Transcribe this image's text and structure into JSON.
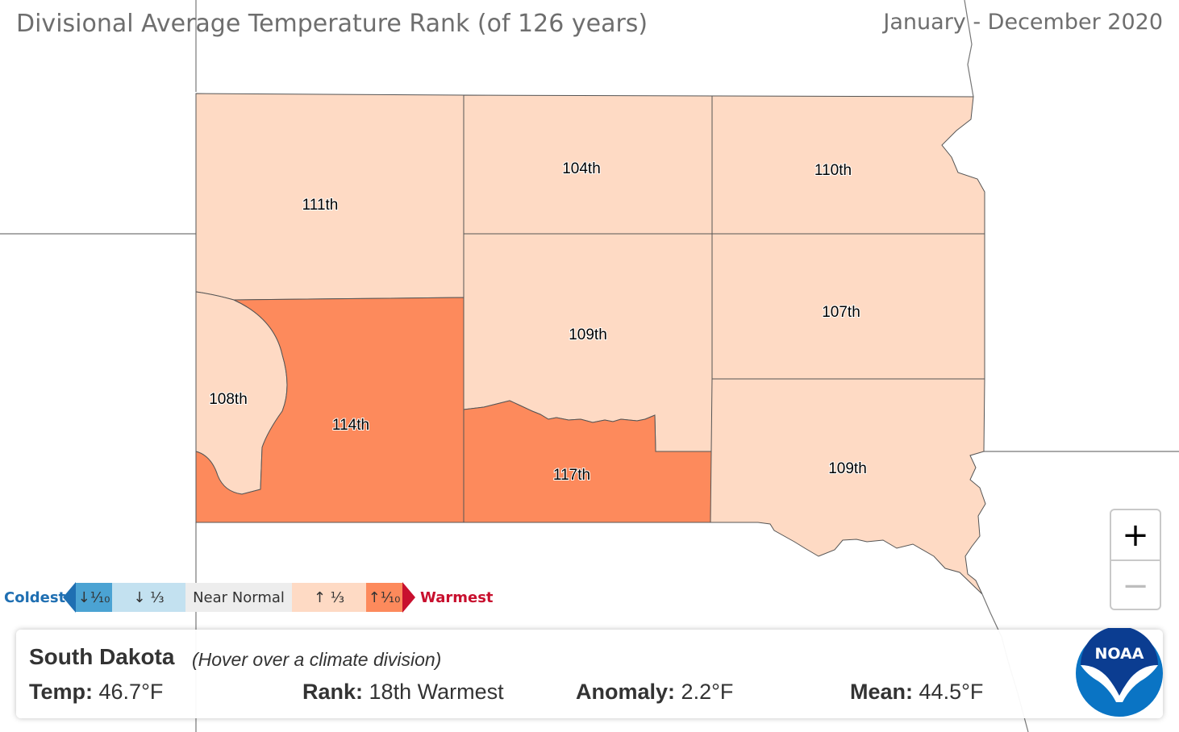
{
  "header": {
    "title": "Divisional Average Temperature Rank (of 126 years)",
    "period": "January - December 2020"
  },
  "map": {
    "state": "South Dakota",
    "divisions": [
      {
        "id": "northwest",
        "rank": "111th",
        "color": "#fedac4"
      },
      {
        "id": "north-central",
        "rank": "104th",
        "color": "#fedac4"
      },
      {
        "id": "northeast",
        "rank": "110th",
        "color": "#fedac4"
      },
      {
        "id": "black-hills",
        "rank": "108th",
        "color": "#fedac4"
      },
      {
        "id": "southwest",
        "rank": "114th",
        "color": "#fd8a5c"
      },
      {
        "id": "central",
        "rank": "109th",
        "color": "#fedac4"
      },
      {
        "id": "south-central",
        "rank": "117th",
        "color": "#fd8a5c"
      },
      {
        "id": "east-central",
        "rank": "107th",
        "color": "#fedac4"
      },
      {
        "id": "southeast",
        "rank": "109th",
        "color": "#fedac4"
      }
    ]
  },
  "legend": {
    "coldest_label": "Coldest",
    "warmest_label": "Warmest",
    "boxes": [
      {
        "label": "↓⅒",
        "color": "#4ba3d3"
      },
      {
        "label": "↓ ⅓",
        "color": "#c3e1f0"
      },
      {
        "label": "Near Normal",
        "color": "#ededed"
      },
      {
        "label": "↑ ⅓",
        "color": "#fedac4"
      },
      {
        "label": "↑⅒",
        "color": "#fd8a5c"
      }
    ],
    "coldest_color": "#1f6fb2",
    "warmest_color": "#c8102e"
  },
  "zoom": {
    "in_label": "+",
    "out_label": "−"
  },
  "info": {
    "state": "South Dakota",
    "hint": "(Hover over a climate division)",
    "temp_label": "Temp:",
    "temp_value": "46.7°F",
    "rank_label": "Rank:",
    "rank_value": "18th Warmest",
    "anomaly_label": "Anomaly:",
    "anomaly_value": "2.2°F",
    "mean_label": "Mean:",
    "mean_value": "44.5°F"
  },
  "logo": {
    "text": "NOAA",
    "color": "#0a74c4",
    "dark_color": "#0b3d91"
  }
}
